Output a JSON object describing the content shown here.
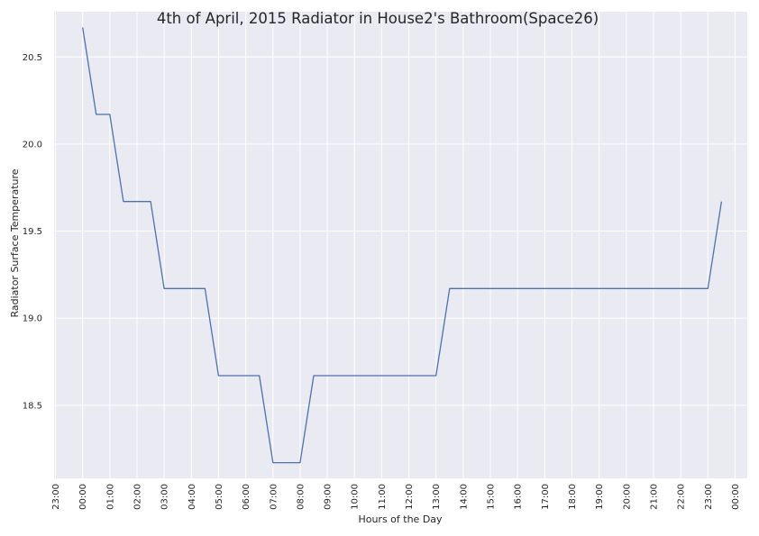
{
  "chart_data": {
    "type": "line",
    "title": "4th of April, 2015 Radiator in House2's Bathroom(Space26)",
    "xlabel": "Hours of the Day",
    "ylabel": "Radiator Surface Temperature",
    "x_tick_labels": [
      "23:00",
      "00:00",
      "01:00",
      "02:00",
      "03:00",
      "04:00",
      "05:00",
      "06:00",
      "07:00",
      "08:00",
      "09:00",
      "10:00",
      "11:00",
      "12:00",
      "13:00",
      "14:00",
      "15:00",
      "16:00",
      "17:00",
      "18:00",
      "19:00",
      "20:00",
      "21:00",
      "22:00",
      "23:00",
      "00:00"
    ],
    "y_ticks": [
      18.5,
      19.0,
      19.5,
      20.0,
      20.5
    ],
    "y_tick_labels": [
      "18.5",
      "19.0",
      "19.5",
      "20.0",
      "20.5"
    ],
    "xlim_hours": [
      -1.05,
      24.45
    ],
    "ylim": [
      18.08,
      20.76
    ],
    "grid": true,
    "line_color": "#4c72b0",
    "background_color": "#eaeaf2",
    "series": [
      {
        "x_hours": [
          0.0,
          0.5,
          1.0,
          1.5,
          2.5,
          3.0,
          4.5,
          5.0,
          6.5,
          7.0,
          8.0,
          8.5,
          13.0,
          13.5,
          23.0,
          23.5
        ],
        "y": [
          20.67,
          20.17,
          20.17,
          19.67,
          19.67,
          19.17,
          19.17,
          18.67,
          18.67,
          18.17,
          18.17,
          18.67,
          18.67,
          19.17,
          19.17,
          19.67
        ]
      }
    ]
  }
}
